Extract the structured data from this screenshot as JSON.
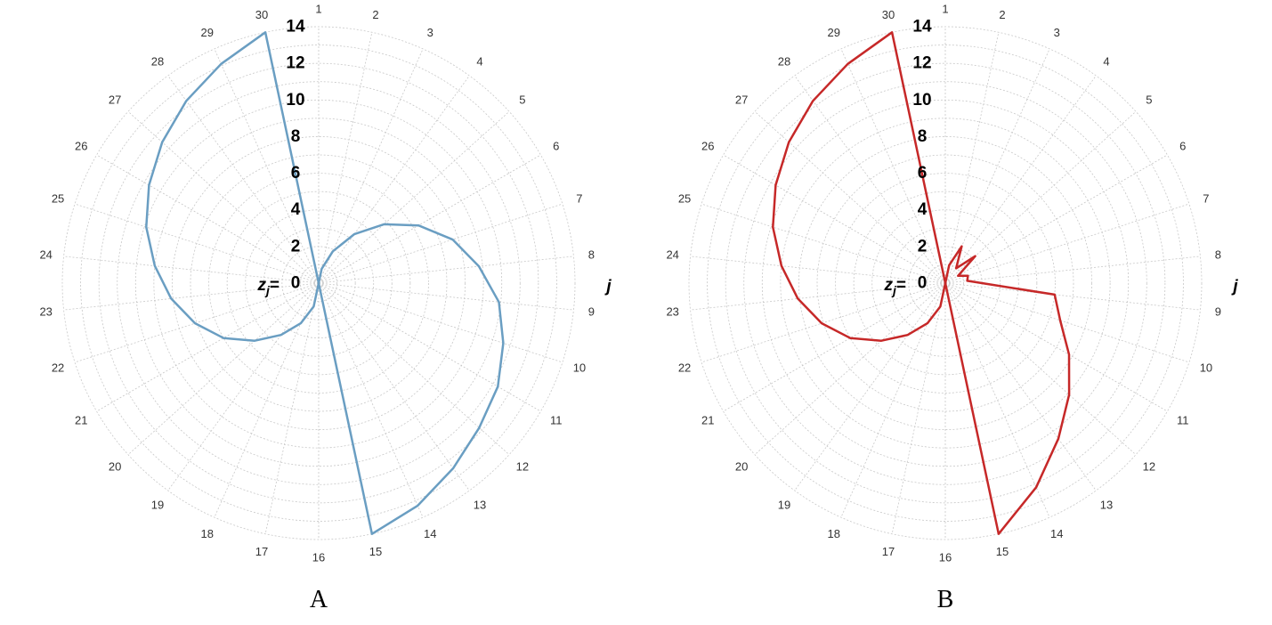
{
  "chart_data": [
    {
      "type": "radar",
      "panel_label": "A",
      "angular_axis": {
        "name": "j",
        "categories": [
          "1",
          "2",
          "3",
          "4",
          "5",
          "6",
          "7",
          "8",
          "9",
          "10",
          "11",
          "12",
          "13",
          "14",
          "15",
          "16",
          "17",
          "18",
          "19",
          "20",
          "21",
          "22",
          "23",
          "24",
          "25",
          "26",
          "27",
          "28",
          "29",
          "30"
        ]
      },
      "radial_axis": {
        "name": "z",
        "name_subscript": "j",
        "name_suffix": "=",
        "ticks": [
          "0",
          "2",
          "4",
          "6",
          "8",
          "10",
          "12",
          "14"
        ],
        "range": [
          0,
          14
        ]
      },
      "grid": true,
      "series": [
        {
          "color": "#6a9ec2",
          "values": [
            0,
            0.8,
            1.9,
            3.3,
            4.8,
            6.3,
            7.7,
            8.8,
            9.9,
            10.6,
            11.3,
            11.8,
            12.5,
            13.3,
            14,
            0,
            1.3,
            2.4,
            3.5,
            4.7,
            6.0,
            7.1,
            8.1,
            9.0,
            9.9,
            10.7,
            11.5,
            12.3,
            13.1,
            14
          ]
        }
      ]
    },
    {
      "type": "radar",
      "panel_label": "B",
      "angular_axis": {
        "name": "j",
        "categories": [
          "1",
          "2",
          "3",
          "4",
          "5",
          "6",
          "7",
          "8",
          "9",
          "10",
          "11",
          "12",
          "13",
          "14",
          "15",
          "16",
          "17",
          "18",
          "19",
          "20",
          "21",
          "22",
          "23",
          "24",
          "25",
          "26",
          "27",
          "28",
          "29",
          "30"
        ]
      },
      "radial_axis": {
        "name": "z",
        "name_subscript": "j",
        "name_suffix": "=",
        "ticks": [
          "0",
          "2",
          "4",
          "6",
          "8",
          "10",
          "12",
          "14"
        ],
        "range": [
          0,
          14
        ]
      },
      "grid": true,
      "series": [
        {
          "color": "#c62828",
          "values": [
            0,
            1.0,
            2.2,
            1.0,
            2.2,
            0.8,
            1.3,
            1.2,
            6.0,
            6.6,
            7.8,
            9.1,
            10.5,
            12.2,
            14,
            0,
            1.3,
            2.4,
            3.5,
            4.7,
            6.0,
            7.1,
            8.1,
            9.0,
            9.9,
            10.7,
            11.5,
            12.3,
            13.1,
            14
          ]
        }
      ]
    }
  ]
}
